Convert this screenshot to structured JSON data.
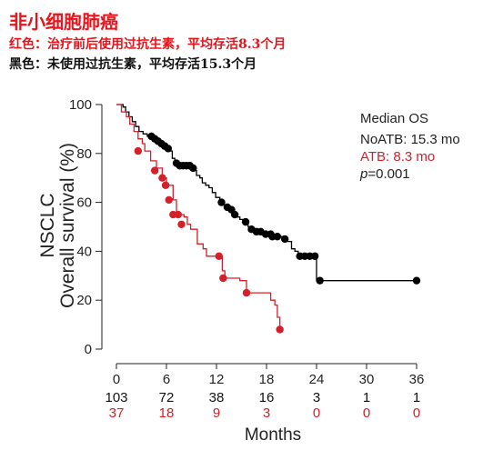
{
  "header": {
    "title": "非小细胞肺癌",
    "red_note": "红色：治疗前后使用过抗生素，平均存活8.3个月",
    "black_note": "黑色：未使用过抗生素，平均存活15.3个月"
  },
  "chart_data": {
    "type": "line",
    "subtype": "kaplan-meier",
    "title": "",
    "ylabel_line1": "NSCLC",
    "ylabel_line2": "Overall survival (%)",
    "xlabel": "Months",
    "xlim": [
      0,
      36
    ],
    "ylim": [
      0,
      100
    ],
    "x_ticks": [
      0,
      6,
      12,
      18,
      24,
      30,
      36
    ],
    "y_ticks": [
      0,
      20,
      40,
      60,
      80,
      100
    ],
    "legend": {
      "title": "Median OS",
      "entries": [
        {
          "label": "NoATB: 15.3 mo",
          "color": "#000000"
        },
        {
          "label": "ATB: 8.3 mo",
          "color": "#d4202a"
        }
      ],
      "p_label": "p",
      "p_value": "=0.001",
      "position": "top-right"
    },
    "series": [
      {
        "key": "noatb",
        "color": "#000000",
        "steps": [
          [
            0,
            100
          ],
          [
            0.8,
            99
          ],
          [
            1.1,
            97
          ],
          [
            1.5,
            95
          ],
          [
            1.9,
            93
          ],
          [
            2.3,
            91
          ],
          [
            2.7,
            89
          ],
          [
            3.2,
            88
          ],
          [
            3.7,
            87
          ],
          [
            4.1,
            86
          ],
          [
            4.6,
            85
          ],
          [
            5.0,
            84
          ],
          [
            5.5,
            83
          ],
          [
            5.9,
            82
          ],
          [
            6.3,
            81
          ],
          [
            6.7,
            78
          ],
          [
            7.0,
            76
          ],
          [
            7.4,
            75
          ],
          [
            8.2,
            75
          ],
          [
            9.0,
            74
          ],
          [
            9.3,
            73
          ],
          [
            9.6,
            71
          ],
          [
            10.0,
            70
          ],
          [
            10.3,
            68
          ],
          [
            10.7,
            67
          ],
          [
            11.1,
            66
          ],
          [
            11.5,
            64
          ],
          [
            11.9,
            62
          ],
          [
            12.4,
            60
          ],
          [
            12.8,
            59
          ],
          [
            13.2,
            58
          ],
          [
            13.6,
            56
          ],
          [
            14.0,
            55
          ],
          [
            14.4,
            54
          ],
          [
            14.8,
            53
          ],
          [
            15.3,
            51
          ],
          [
            15.8,
            50
          ],
          [
            16.2,
            49
          ],
          [
            16.7,
            48
          ],
          [
            17.2,
            47
          ],
          [
            17.7,
            47
          ],
          [
            18.5,
            47
          ],
          [
            19.3,
            46
          ],
          [
            20.0,
            45
          ],
          [
            20.5,
            44
          ],
          [
            21.0,
            41
          ],
          [
            21.4,
            40
          ],
          [
            21.8,
            38
          ],
          [
            22.3,
            38
          ],
          [
            23.0,
            38
          ],
          [
            24.0,
            38
          ],
          [
            24.0,
            28
          ],
          [
            36.0,
            28
          ]
        ],
        "censored": [
          [
            4.2,
            87
          ],
          [
            4.6,
            86
          ],
          [
            5.0,
            85
          ],
          [
            5.4,
            84
          ],
          [
            5.8,
            83
          ],
          [
            6.2,
            82
          ],
          [
            7.2,
            76
          ],
          [
            7.6,
            75
          ],
          [
            8.0,
            75
          ],
          [
            8.4,
            75
          ],
          [
            8.8,
            75
          ],
          [
            9.2,
            74
          ],
          [
            12.6,
            60
          ],
          [
            13.3,
            58
          ],
          [
            13.8,
            57
          ],
          [
            14.2,
            55
          ],
          [
            15.5,
            52
          ],
          [
            16.2,
            49
          ],
          [
            16.8,
            48
          ],
          [
            17.3,
            48
          ],
          [
            17.9,
            47
          ],
          [
            18.5,
            47
          ],
          [
            18.7,
            46
          ],
          [
            19.3,
            46
          ],
          [
            20.2,
            45
          ],
          [
            22.0,
            38
          ],
          [
            22.6,
            38
          ],
          [
            23.2,
            38
          ],
          [
            23.8,
            38
          ],
          [
            24.4,
            28
          ],
          [
            36.0,
            28
          ]
        ]
      },
      {
        "key": "atb",
        "color": "#d4202a",
        "steps": [
          [
            0,
            100
          ],
          [
            0.6,
            97
          ],
          [
            1.2,
            95
          ],
          [
            1.6,
            92
          ],
          [
            2.1,
            89
          ],
          [
            2.6,
            86
          ],
          [
            3.1,
            84
          ],
          [
            3.4,
            81
          ],
          [
            4.1,
            77
          ],
          [
            4.8,
            74
          ],
          [
            5.5,
            70
          ],
          [
            6.0,
            67
          ],
          [
            6.8,
            61
          ],
          [
            7.2,
            55
          ],
          [
            8.1,
            54
          ],
          [
            8.5,
            51
          ],
          [
            8.9,
            49
          ],
          [
            9.7,
            43
          ],
          [
            10.4,
            41
          ],
          [
            10.8,
            38
          ],
          [
            12.3,
            38
          ],
          [
            12.7,
            32
          ],
          [
            13.0,
            29
          ],
          [
            14.8,
            28
          ],
          [
            15.6,
            23
          ],
          [
            18.1,
            23
          ],
          [
            18.5,
            20
          ],
          [
            19.0,
            18
          ],
          [
            19.3,
            13
          ],
          [
            19.6,
            8
          ]
        ],
        "censored": [
          [
            2.6,
            81
          ],
          [
            4.6,
            73
          ],
          [
            5.5,
            70
          ],
          [
            5.9,
            67
          ],
          [
            6.3,
            61
          ],
          [
            6.8,
            55
          ],
          [
            7.4,
            55
          ],
          [
            7.8,
            51
          ],
          [
            12.3,
            38
          ],
          [
            12.8,
            29
          ],
          [
            15.6,
            23
          ],
          [
            19.6,
            8
          ]
        ]
      }
    ],
    "at_risk": [
      {
        "key": "noatb",
        "color": "#111111",
        "values": [
          "103",
          "72",
          "38",
          "16",
          "3",
          "1",
          "1"
        ]
      },
      {
        "key": "atb",
        "color": "#d4202a",
        "values": [
          "37",
          "18",
          "9",
          "3",
          "0",
          "0",
          "0"
        ]
      }
    ]
  }
}
